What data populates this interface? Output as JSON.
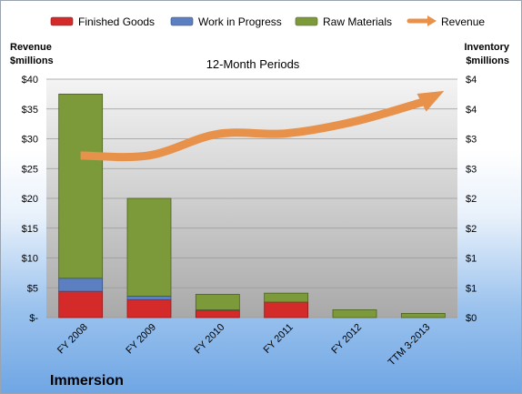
{
  "chart_data": {
    "type": "bar",
    "title": "12-Month Periods",
    "company": "Immersion",
    "left_axis": {
      "label_line1": "Revenue",
      "label_line2": "$millions",
      "range": [
        0,
        40
      ],
      "ticks": [
        0,
        5,
        10,
        15,
        20,
        25,
        30,
        35,
        40
      ],
      "tick_labels": [
        "$-",
        "$5",
        "$10",
        "$15",
        "$20",
        "$25",
        "$30",
        "$35",
        "$40"
      ]
    },
    "right_axis": {
      "label_line1": "Inventory",
      "label_line2": "$millions",
      "range": [
        0,
        4
      ],
      "ticks": [
        0,
        0.5,
        1,
        1.5,
        2,
        2.5,
        3,
        3.5,
        4
      ],
      "tick_labels": [
        "$0",
        "$1",
        "$1",
        "$2",
        "$2",
        "$3",
        "$3",
        "$4",
        "$4"
      ]
    },
    "categories": [
      "FY 2008",
      "FY 2009",
      "FY 2010",
      "FY 2011",
      "FY 2012",
      "TTM 3-2013"
    ],
    "series": [
      {
        "name": "Finished Goods",
        "axis": "right",
        "values": [
          0.44,
          0.3,
          0.12,
          0.26,
          0.0,
          0.0
        ]
      },
      {
        "name": "Work in Progress",
        "axis": "right",
        "values": [
          0.22,
          0.06,
          0.01,
          0.0,
          0.0,
          0.0
        ]
      },
      {
        "name": "Raw Materials",
        "axis": "right",
        "values": [
          3.09,
          1.64,
          0.26,
          0.15,
          0.13,
          0.07
        ]
      },
      {
        "name": "Revenue",
        "axis": "left",
        "type": "line",
        "values": [
          27.2,
          27.2,
          30.8,
          30.9,
          32.9,
          36.2
        ]
      }
    ],
    "colors": {
      "finished_goods": "#d42a2a",
      "work_in_progress": "#5b7fc0",
      "raw_materials": "#7c9a3a",
      "revenue": "#e8914a"
    },
    "legend_position": "top"
  }
}
